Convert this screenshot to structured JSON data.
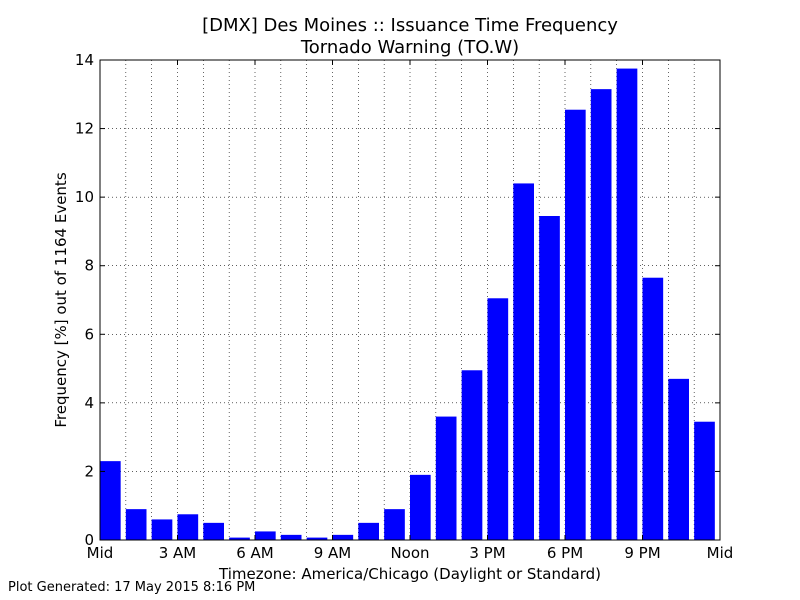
{
  "chart_data": {
    "type": "bar",
    "title": "[DMX] Des Moines :: Issuance Time Frequency",
    "subtitle": "Tornado Warning (TO.W)",
    "xlabel": "Timezone: America/Chicago (Daylight or Standard)",
    "ylabel": "Frequency [%] out of 1164 Events",
    "footer": "Plot Generated: 17 May 2015 8:16 PM",
    "bar_color": "#0000ff",
    "categories": [
      "0",
      "1",
      "2",
      "3",
      "4",
      "5",
      "6",
      "7",
      "8",
      "9",
      "10",
      "11",
      "12",
      "13",
      "14",
      "15",
      "16",
      "17",
      "18",
      "19",
      "20",
      "21",
      "22",
      "23"
    ],
    "values": [
      2.3,
      0.9,
      0.6,
      0.75,
      0.5,
      0.07,
      0.25,
      0.15,
      0.07,
      0.15,
      0.5,
      0.9,
      1.9,
      3.6,
      4.95,
      7.05,
      10.4,
      9.45,
      12.55,
      13.15,
      13.75,
      7.65,
      4.7,
      3.45
    ],
    "xlim": [
      0,
      24
    ],
    "ylim": [
      0,
      14
    ],
    "yticks": [
      0,
      2,
      4,
      6,
      8,
      10,
      12,
      14
    ],
    "xticks": [
      {
        "value": 0,
        "label": "Mid"
      },
      {
        "value": 3,
        "label": "3 AM"
      },
      {
        "value": 6,
        "label": "6 AM"
      },
      {
        "value": 9,
        "label": "9 AM"
      },
      {
        "value": 12,
        "label": "Noon"
      },
      {
        "value": 15,
        "label": "3 PM"
      },
      {
        "value": 18,
        "label": "6 PM"
      },
      {
        "value": 21,
        "label": "9 PM"
      },
      {
        "value": 24,
        "label": "Mid"
      }
    ],
    "grid": true
  }
}
